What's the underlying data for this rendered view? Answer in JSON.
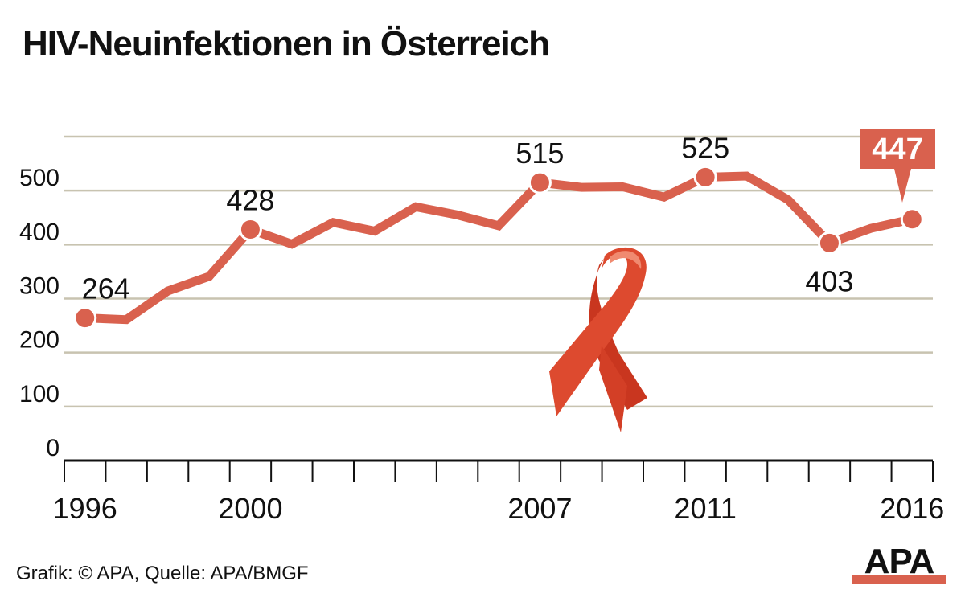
{
  "title": "HIV-Neuinfektionen in Österreich",
  "source": "Grafik: © APA, Quelle: APA/BMGF",
  "logo": "APA",
  "colors": {
    "line": "#d9614e",
    "grid": "#c8c3b0",
    "ribbon": "#d8442b",
    "logo": "#d9614e"
  },
  "chart_data": {
    "type": "line",
    "title": "HIV-Neuinfektionen in Österreich",
    "x": [
      1996,
      1997,
      1998,
      1999,
      2000,
      2001,
      2002,
      2003,
      2004,
      2005,
      2006,
      2007,
      2008,
      2009,
      2010,
      2011,
      2012,
      2013,
      2014,
      2015,
      2016
    ],
    "values": [
      264,
      261,
      314,
      341,
      428,
      401,
      441,
      425,
      470,
      455,
      435,
      515,
      506,
      507,
      488,
      525,
      527,
      483,
      403,
      430,
      447
    ],
    "ylim": [
      0,
      600
    ],
    "yticks": [
      0,
      100,
      200,
      300,
      400,
      500
    ],
    "xtick_labels": [
      "1996",
      "2000",
      "2007",
      "2011",
      "2016"
    ],
    "labeled_points": [
      {
        "x": 1996,
        "label": "264"
      },
      {
        "x": 2000,
        "label": "428"
      },
      {
        "x": 2007,
        "label": "515"
      },
      {
        "x": 2011,
        "label": "525"
      },
      {
        "x": 2014,
        "label": "403"
      }
    ],
    "highlight": {
      "x": 2016,
      "label": "447"
    },
    "grid": true,
    "decoration": "red-ribbon"
  }
}
